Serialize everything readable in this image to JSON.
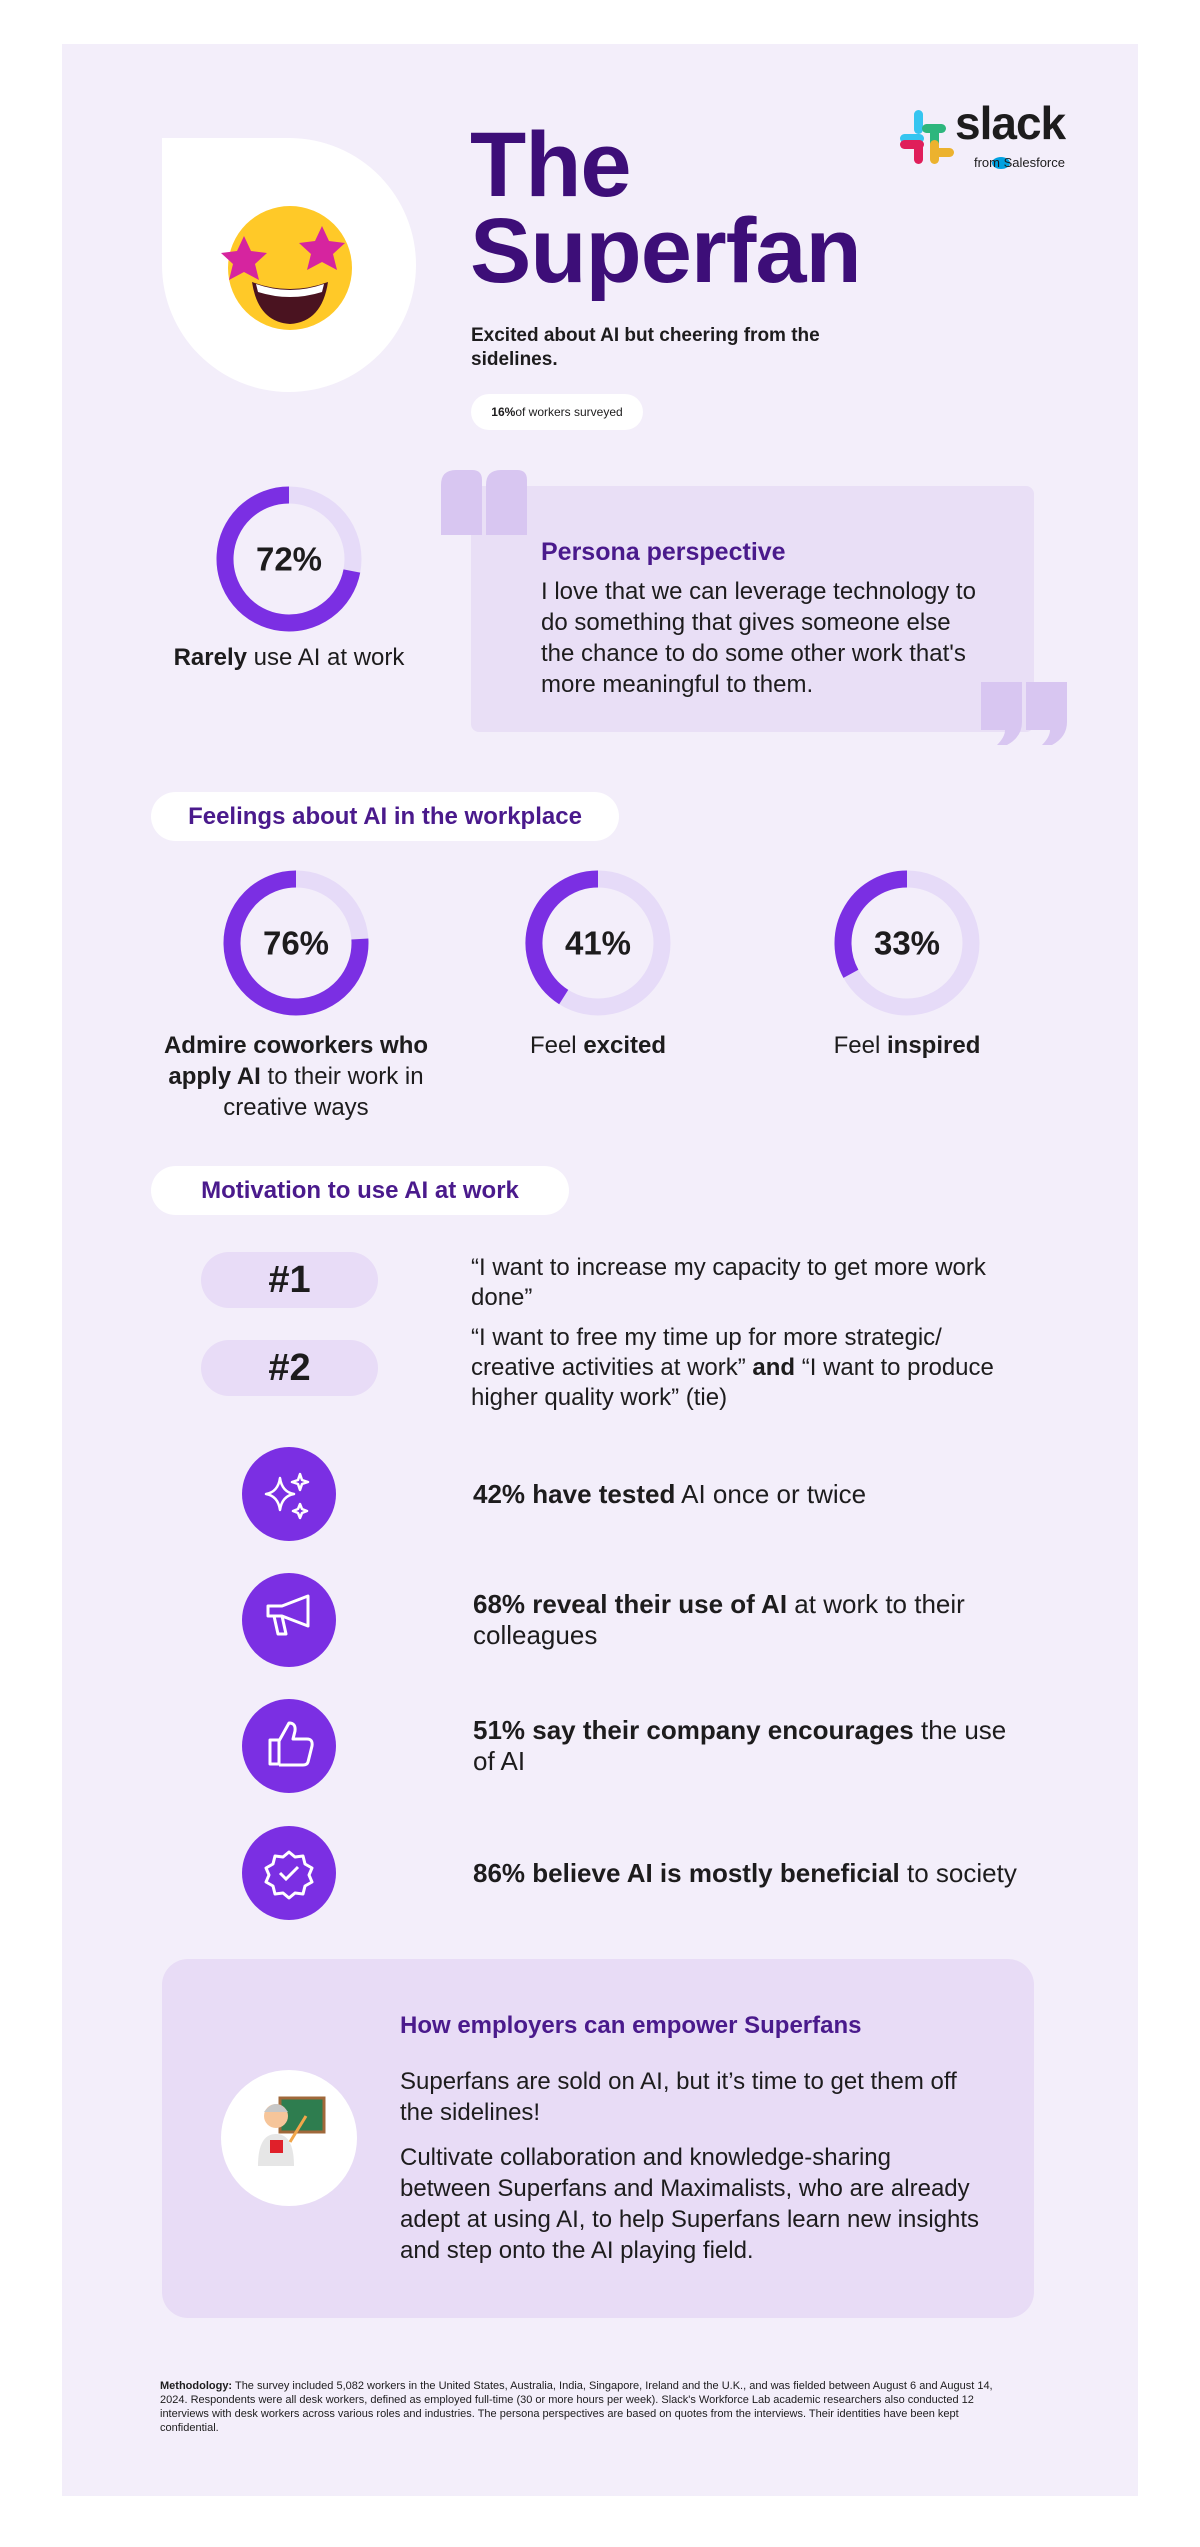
{
  "logo": {
    "name": "slack",
    "byline": "from Salesforce"
  },
  "header": {
    "title": "The Superfan",
    "subtitle": "Excited about AI but cheering from the sidelines.",
    "badge": [
      {
        "text": "16%",
        "bold": true
      },
      {
        "text": "of workers surveyed"
      }
    ]
  },
  "usage": {
    "stat": {
      "value": 72,
      "label": "72%"
    },
    "caption": [
      {
        "text": "Rarely",
        "bold": true
      },
      {
        "text": "use AI at work"
      }
    ]
  },
  "persona": {
    "heading": "Persona perspective",
    "quote": "I love that we can leverage technology to do something that gives someone else the chance to do some other work that's more meaningful to them."
  },
  "feelings": {
    "heading": "Feelings about AI in the workplace",
    "items": [
      {
        "stat": {
          "value": 76,
          "label": "76%"
        },
        "caption": [
          {
            "text": "Admire coworkers who apply AI",
            "bold": true
          },
          {
            "text": "to their work in creative ways"
          }
        ]
      },
      {
        "stat": {
          "value": 41,
          "label": "41%"
        },
        "caption": [
          {
            "text": "Feel"
          },
          {
            "text": "excited",
            "bold": true
          }
        ]
      },
      {
        "stat": {
          "value": 33,
          "label": "33%"
        },
        "caption": [
          {
            "text": "Feel"
          },
          {
            "text": "inspired",
            "bold": true
          }
        ]
      }
    ]
  },
  "motivation": {
    "heading": "Motivation to use AI at work",
    "ranks": [
      {
        "rank": "#1",
        "text": [
          {
            "text": "“I want to increase my capacity to get more work done”"
          }
        ]
      },
      {
        "rank": "#2",
        "text": [
          {
            "text": "“I want to free my time up for more strategic/ creative activities at work”"
          },
          {
            "text": "and",
            "bold": true
          },
          {
            "text": "“I want to produce higher quality work” (tie)"
          }
        ]
      }
    ],
    "stats": [
      [
        {
          "text": "42% have tested",
          "bold": true
        },
        {
          "text": "AI once or twice"
        }
      ],
      [
        {
          "text": "68% reveal their use of AI",
          "bold": true
        },
        {
          "text": "at work to their colleagues"
        }
      ],
      [
        {
          "text": "51% say their company encourages",
          "bold": true
        },
        {
          "text": "the use of AI"
        }
      ],
      [
        {
          "text": "86% believe AI is mostly beneficial",
          "bold": true
        },
        {
          "text": "to society"
        }
      ]
    ]
  },
  "empower": {
    "heading": "How employers can empower Superfans",
    "paragraphs": [
      "Superfans are sold on AI, but it’s time to get them off the sidelines!",
      "Cultivate collaboration and knowledge-sharing between Superfans and Maximalists, who are already adept at using AI, to help Superfans learn new insights and step onto the AI playing field."
    ]
  },
  "methodology": [
    {
      "text": "Methodology:",
      "bold": true
    },
    {
      "text": "The survey included 5,082 workers in the United States, Australia, India, Singapore, Ireland and the U.K., and was fielded between August 6 and August 14, 2024. Respondents were all desk workers, defined as employed full-time (30 or more hours per week). Slack's Workforce Lab academic researchers also conducted 12 interviews with desk workers across various roles and industries. The persona perspectives are based on quotes from the interviews. Their identities have been kept confidential."
    }
  ]
}
